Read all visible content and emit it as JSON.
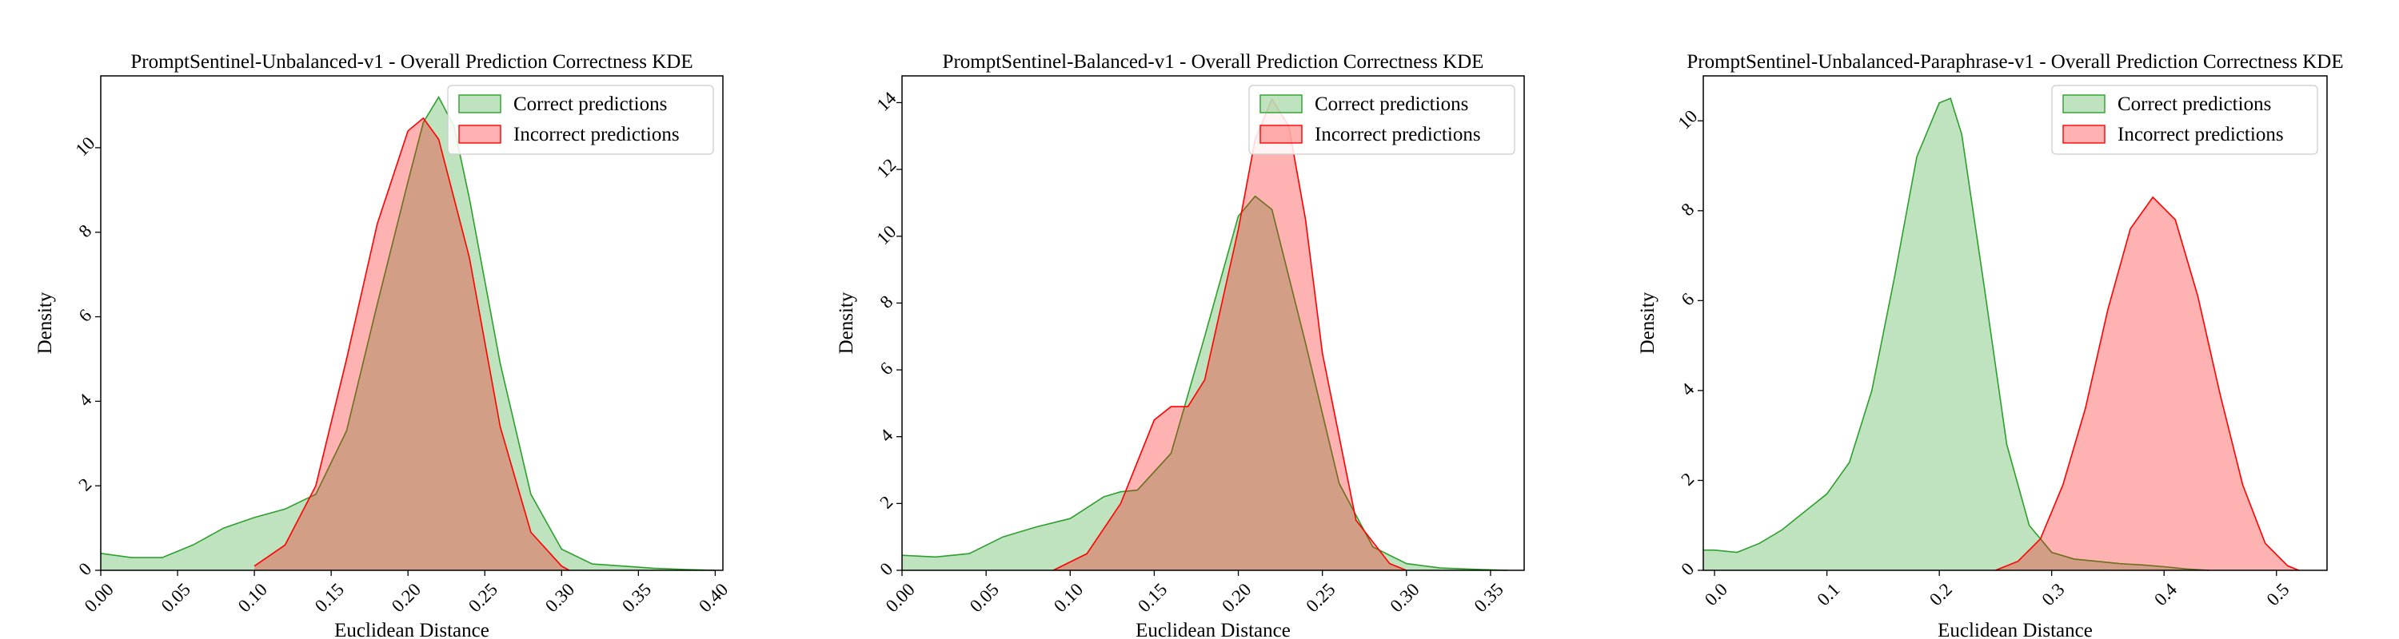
{
  "chart_data": [
    {
      "type": "area",
      "title": "PromptSentinel-Unbalanced-v1 - Overall Prediction Correctness KDE",
      "xlabel": "Euclidean Distance",
      "ylabel": "Density",
      "xlim": [
        0.0,
        0.405
      ],
      "ylim": [
        0,
        11.7
      ],
      "xticks": [
        "0.00",
        "0.05",
        "0.10",
        "0.15",
        "0.20",
        "0.25",
        "0.30",
        "0.35",
        "0.40"
      ],
      "yticks": [
        "0",
        "2",
        "4",
        "6",
        "8",
        "10"
      ],
      "legend_position": "top-right",
      "grid": false,
      "series": [
        {
          "name": "Correct predictions",
          "fill": "#2ca02c",
          "line": "#2ca02c",
          "x": [
            0.0,
            0.02,
            0.04,
            0.06,
            0.08,
            0.1,
            0.12,
            0.14,
            0.16,
            0.18,
            0.2,
            0.21,
            0.22,
            0.23,
            0.24,
            0.26,
            0.28,
            0.3,
            0.32,
            0.34,
            0.36,
            0.38,
            0.4
          ],
          "y": [
            0.4,
            0.3,
            0.3,
            0.6,
            1.0,
            1.25,
            1.45,
            1.8,
            3.3,
            6.3,
            9.2,
            10.6,
            11.2,
            10.5,
            8.8,
            4.9,
            1.8,
            0.5,
            0.15,
            0.1,
            0.05,
            0.02,
            0.0
          ]
        },
        {
          "name": "Incorrect predictions",
          "fill": "#ff0000",
          "line": "#ff0000",
          "x": [
            0.1,
            0.12,
            0.14,
            0.16,
            0.18,
            0.2,
            0.21,
            0.22,
            0.24,
            0.26,
            0.28,
            0.3,
            0.305
          ],
          "y": [
            0.1,
            0.6,
            2.0,
            5.0,
            8.2,
            10.4,
            10.7,
            10.2,
            7.4,
            3.4,
            0.9,
            0.1,
            0.0
          ]
        }
      ]
    },
    {
      "type": "area",
      "title": "PromptSentinel-Balanced-v1 - Overall Prediction Correctness KDE",
      "xlabel": "Euclidean Distance",
      "ylabel": "Density",
      "xlim": [
        0.0,
        0.37
      ],
      "ylim": [
        0,
        14.8
      ],
      "xticks": [
        "0.00",
        "0.05",
        "0.10",
        "0.15",
        "0.20",
        "0.25",
        "0.30",
        "0.35"
      ],
      "yticks": [
        "0",
        "2",
        "4",
        "6",
        "8",
        "10",
        "12",
        "14"
      ],
      "legend_position": "top-right",
      "grid": false,
      "series": [
        {
          "name": "Correct predictions",
          "fill": "#2ca02c",
          "line": "#2ca02c",
          "x": [
            0.0,
            0.02,
            0.04,
            0.06,
            0.08,
            0.1,
            0.12,
            0.13,
            0.14,
            0.16,
            0.18,
            0.2,
            0.21,
            0.22,
            0.24,
            0.26,
            0.28,
            0.3,
            0.32,
            0.34,
            0.36
          ],
          "y": [
            0.45,
            0.4,
            0.5,
            1.0,
            1.3,
            1.55,
            2.2,
            2.35,
            2.4,
            3.5,
            7.0,
            10.6,
            11.2,
            10.8,
            6.8,
            2.6,
            0.7,
            0.2,
            0.07,
            0.03,
            0.0
          ]
        },
        {
          "name": "Incorrect predictions",
          "fill": "#ff0000",
          "line": "#ff0000",
          "x": [
            0.09,
            0.11,
            0.13,
            0.15,
            0.16,
            0.17,
            0.18,
            0.2,
            0.21,
            0.22,
            0.23,
            0.24,
            0.25,
            0.27,
            0.29,
            0.3
          ],
          "y": [
            0.0,
            0.5,
            2.0,
            4.5,
            4.9,
            4.9,
            5.7,
            10.2,
            12.9,
            14.1,
            13.3,
            10.5,
            6.5,
            1.5,
            0.2,
            0.0
          ]
        }
      ]
    },
    {
      "type": "area",
      "title": "PromptSentinel-Unbalanced-Paraphrase-v1 - Overall Prediction Correctness KDE",
      "xlabel": "Euclidean Distance",
      "ylabel": "Density",
      "xlim": [
        -0.01,
        0.545
      ],
      "ylim": [
        0,
        11.0
      ],
      "xticks": [
        "0.0",
        "0.1",
        "0.2",
        "0.3",
        "0.4",
        "0.5"
      ],
      "yticks": [
        "0",
        "2",
        "4",
        "6",
        "8",
        "10"
      ],
      "legend_position": "top-right",
      "grid": false,
      "series": [
        {
          "name": "Correct predictions",
          "fill": "#2ca02c",
          "line": "#2ca02c",
          "x": [
            -0.01,
            0.0,
            0.02,
            0.04,
            0.06,
            0.08,
            0.1,
            0.12,
            0.14,
            0.16,
            0.18,
            0.2,
            0.21,
            0.22,
            0.24,
            0.26,
            0.28,
            0.3,
            0.32,
            0.34,
            0.36,
            0.38,
            0.4,
            0.42,
            0.44
          ],
          "y": [
            0.45,
            0.45,
            0.4,
            0.6,
            0.9,
            1.3,
            1.7,
            2.4,
            4.0,
            6.5,
            9.2,
            10.4,
            10.5,
            9.7,
            6.3,
            2.8,
            1.0,
            0.4,
            0.25,
            0.2,
            0.15,
            0.12,
            0.08,
            0.03,
            0.0
          ]
        },
        {
          "name": "Incorrect predictions",
          "fill": "#ff0000",
          "line": "#ff0000",
          "x": [
            0.25,
            0.27,
            0.29,
            0.31,
            0.33,
            0.35,
            0.37,
            0.39,
            0.41,
            0.43,
            0.45,
            0.47,
            0.49,
            0.51,
            0.52
          ],
          "y": [
            0.0,
            0.2,
            0.7,
            1.9,
            3.6,
            5.8,
            7.6,
            8.3,
            7.8,
            6.1,
            3.9,
            1.9,
            0.6,
            0.1,
            0.0
          ]
        }
      ]
    }
  ]
}
